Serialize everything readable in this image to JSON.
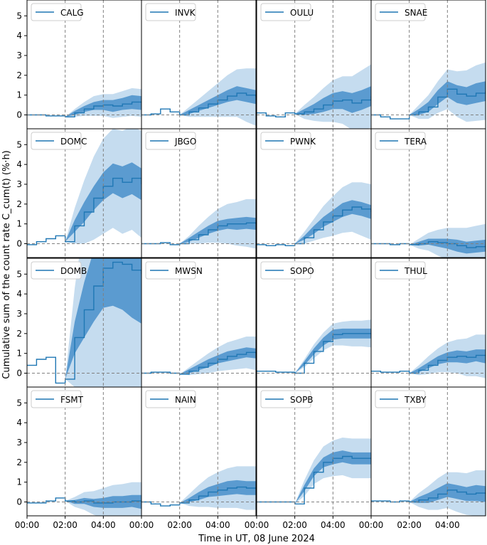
{
  "figure": {
    "ylabel": "Cumulative sum of the count rate C_cum(t) (%·h)",
    "xlabel": "Time in UT, 08 June 2024"
  },
  "chart_data": {
    "type": "line",
    "layout": "4x4 grid, shared axes",
    "grid": false,
    "legend_placement": "upper-left",
    "xlabel": "Time in UT, 08 June 2024",
    "ylabel": "Cumulative sum of the count rate C_cum(t) (%·h)",
    "xlim_hours": [
      0,
      6
    ],
    "xticks": [
      {
        "value": 0,
        "label": "00:00"
      },
      {
        "value": 2,
        "label": "02:00"
      },
      {
        "value": 4,
        "label": "04:00"
      }
    ],
    "ylim": [
      -0.7,
      5.8
    ],
    "yticks": [
      0,
      1,
      2,
      3,
      4,
      5
    ],
    "vertical_reference_lines_hours": [
      2,
      4
    ],
    "horizontal_reference_line": 0,
    "colors": {
      "line": "#1f77b4",
      "band_inner": "#5b9bd0",
      "band_outer": "#c5dcef",
      "reference": "#808080"
    },
    "panels": [
      {
        "name": "CALG",
        "x": [
          0,
          0.5,
          1,
          1.5,
          2,
          2.5,
          3,
          3.5,
          4,
          4.5,
          5,
          5.5,
          6
        ],
        "y": [
          0,
          0,
          -0.05,
          -0.05,
          -0.1,
          0.1,
          0.3,
          0.45,
          0.5,
          0.45,
          0.55,
          0.65,
          0.6
        ],
        "band_inner": [
          0,
          0,
          0,
          0,
          0,
          0.1,
          0.15,
          0.2,
          0.25,
          0.3,
          0.3,
          0.35,
          0.35
        ],
        "band_outer": [
          0,
          0,
          0,
          0,
          0,
          0.2,
          0.35,
          0.5,
          0.55,
          0.6,
          0.65,
          0.7,
          0.7
        ]
      },
      {
        "name": "INVK",
        "x": [
          0,
          0.5,
          1,
          1.5,
          2,
          2.5,
          3,
          3.5,
          4,
          4.5,
          5,
          5.5,
          6
        ],
        "y": [
          0,
          0.05,
          0.3,
          0.15,
          0,
          0.15,
          0.35,
          0.55,
          0.75,
          0.95,
          1.1,
          1.0,
          0.9
        ],
        "band_inner": [
          0,
          0,
          0,
          0,
          0,
          0.1,
          0.15,
          0.2,
          0.25,
          0.3,
          0.35,
          0.35,
          0.35
        ],
        "band_outer": [
          0,
          0,
          0,
          0,
          0,
          0.25,
          0.45,
          0.65,
          0.85,
          1.05,
          1.2,
          1.35,
          1.45
        ]
      },
      {
        "name": "OULU",
        "x": [
          0,
          0.5,
          1,
          1.5,
          2,
          2.5,
          3,
          3.5,
          4,
          4.5,
          5,
          5.5,
          6
        ],
        "y": [
          0.1,
          -0.05,
          -0.1,
          0.1,
          0.05,
          0.15,
          0.3,
          0.5,
          0.7,
          0.75,
          0.6,
          0.75,
          0.95
        ],
        "band_inner": [
          0,
          0,
          0,
          0,
          0,
          0.15,
          0.25,
          0.35,
          0.4,
          0.45,
          0.5,
          0.5,
          0.5
        ],
        "band_outer": [
          0,
          0,
          0,
          0,
          0,
          0.35,
          0.6,
          0.85,
          1.05,
          1.2,
          1.35,
          1.5,
          1.6
        ]
      },
      {
        "name": "SNAE",
        "x": [
          0,
          0.5,
          1,
          1.5,
          2,
          2.5,
          3,
          3.5,
          4,
          4.5,
          5,
          5.5,
          6
        ],
        "y": [
          0,
          -0.1,
          -0.2,
          -0.2,
          0,
          0.15,
          0.4,
          0.9,
          1.3,
          1.05,
          0.95,
          1.1,
          1.2
        ],
        "band_inner": [
          0,
          0,
          0,
          0,
          0,
          0.15,
          0.25,
          0.35,
          0.4,
          0.45,
          0.45,
          0.5,
          0.5
        ],
        "band_outer": [
          0,
          0,
          0,
          0,
          0,
          0.35,
          0.6,
          0.8,
          1.0,
          1.15,
          1.3,
          1.4,
          1.45
        ]
      },
      {
        "name": "DOMC",
        "x": [
          0,
          0.5,
          1,
          1.5,
          2,
          2.5,
          3,
          3.5,
          4,
          4.5,
          5,
          5.5,
          6
        ],
        "y": [
          -0.05,
          0.1,
          0.25,
          0.4,
          0.1,
          0.9,
          1.6,
          2.3,
          2.9,
          3.3,
          3.1,
          3.3,
          3.0
        ],
        "band_inner": [
          0,
          0,
          0,
          0,
          0,
          0.3,
          0.5,
          0.6,
          0.7,
          0.75,
          0.8,
          0.8,
          0.8
        ],
        "band_outer": [
          0,
          0,
          0,
          0,
          0,
          0.9,
          1.6,
          2.1,
          2.4,
          2.5,
          2.6,
          2.6,
          2.7
        ]
      },
      {
        "name": "JBGO",
        "x": [
          0,
          0.5,
          1,
          1.5,
          2,
          2.5,
          3,
          3.5,
          4,
          4.5,
          5,
          5.5,
          6
        ],
        "y": [
          0,
          0,
          0.05,
          -0.05,
          0,
          0.2,
          0.45,
          0.7,
          0.9,
          1.0,
          1.0,
          1.05,
          1.0
        ],
        "band_inner": [
          0,
          0,
          0,
          0,
          0,
          0.1,
          0.15,
          0.2,
          0.25,
          0.25,
          0.3,
          0.3,
          0.3
        ],
        "band_outer": [
          0,
          0,
          0,
          0,
          0,
          0.2,
          0.45,
          0.65,
          0.85,
          1.0,
          1.1,
          1.2,
          1.25
        ]
      },
      {
        "name": "PWNK",
        "x": [
          0,
          0.5,
          1,
          1.5,
          2,
          2.5,
          3,
          3.5,
          4,
          4.5,
          5,
          5.5,
          6
        ],
        "y": [
          -0.05,
          -0.1,
          -0.05,
          -0.1,
          0,
          0.3,
          0.7,
          1.1,
          1.4,
          1.7,
          1.85,
          1.75,
          1.6
        ],
        "band_inner": [
          0,
          0,
          0,
          0,
          0,
          0.1,
          0.2,
          0.25,
          0.3,
          0.35,
          0.35,
          0.35,
          0.35
        ],
        "band_outer": [
          0,
          0,
          0,
          0,
          0,
          0.3,
          0.55,
          0.8,
          1.0,
          1.15,
          1.25,
          1.35,
          1.4
        ]
      },
      {
        "name": "TERA",
        "x": [
          0,
          0.5,
          1,
          1.5,
          2,
          2.5,
          3,
          3.5,
          4,
          4.5,
          5,
          5.5,
          6
        ],
        "y": [
          0,
          0,
          -0.05,
          0,
          -0.05,
          0,
          0.1,
          0.05,
          0,
          -0.1,
          -0.2,
          -0.15,
          -0.1
        ],
        "band_inner": [
          0,
          0,
          0,
          0,
          0,
          0.1,
          0.15,
          0.2,
          0.25,
          0.3,
          0.3,
          0.3,
          0.3
        ],
        "band_outer": [
          0,
          0,
          0,
          0,
          0,
          0.25,
          0.45,
          0.65,
          0.8,
          0.9,
          1.0,
          1.05,
          1.1
        ]
      },
      {
        "name": "DOMB",
        "x": [
          0,
          0.5,
          1,
          1.5,
          2,
          2.5,
          3,
          3.5,
          4,
          4.5,
          5,
          5.5,
          6
        ],
        "y": [
          0.4,
          0.7,
          0.8,
          -0.5,
          -0.3,
          1.8,
          3.2,
          4.4,
          5.3,
          5.6,
          5.5,
          5.2,
          5.0
        ],
        "band_inner": [
          0,
          0,
          0,
          0,
          0,
          0.8,
          1.4,
          1.8,
          2.0,
          2.2,
          2.3,
          2.4,
          2.5
        ],
        "band_outer": [
          0,
          0,
          0,
          0,
          0,
          2.5,
          4.5,
          6.0,
          7.0,
          7.5,
          8.0,
          8.0,
          8.0
        ]
      },
      {
        "name": "MWSN",
        "x": [
          0,
          0.5,
          1,
          1.5,
          2,
          2.5,
          3,
          3.5,
          4,
          4.5,
          5,
          5.5,
          6
        ],
        "y": [
          0,
          0.05,
          0.05,
          0,
          -0.05,
          0.1,
          0.3,
          0.5,
          0.7,
          0.85,
          0.95,
          1.05,
          1.0
        ],
        "band_inner": [
          0,
          0,
          0,
          0,
          0,
          0.1,
          0.15,
          0.2,
          0.2,
          0.25,
          0.25,
          0.25,
          0.25
        ],
        "band_outer": [
          0,
          0,
          0,
          0,
          0,
          0.2,
          0.35,
          0.5,
          0.6,
          0.7,
          0.75,
          0.8,
          0.85
        ]
      },
      {
        "name": "SOPO",
        "x": [
          0,
          0.5,
          1,
          1.5,
          2,
          2.5,
          3,
          3.5,
          4,
          4.5,
          5,
          5.5,
          6
        ],
        "y": [
          0.1,
          0.1,
          0.05,
          0.05,
          0,
          0.5,
          1.1,
          1.6,
          1.95,
          2.0,
          2.0,
          2.0,
          2.0
        ],
        "band_inner": [
          0,
          0,
          0,
          0,
          0,
          0.1,
          0.15,
          0.2,
          0.25,
          0.25,
          0.25,
          0.25,
          0.25
        ],
        "band_outer": [
          0,
          0,
          0,
          0,
          0,
          0.2,
          0.35,
          0.45,
          0.55,
          0.6,
          0.65,
          0.65,
          0.7
        ]
      },
      {
        "name": "THUL",
        "x": [
          0,
          0.5,
          1,
          1.5,
          2,
          2.5,
          3,
          3.5,
          4,
          4.5,
          5,
          5.5,
          6
        ],
        "y": [
          0.1,
          0.05,
          0.05,
          0.1,
          0,
          0.15,
          0.4,
          0.65,
          0.8,
          0.85,
          0.8,
          0.9,
          0.85
        ],
        "band_inner": [
          0,
          0,
          0,
          0,
          0,
          0.1,
          0.15,
          0.2,
          0.25,
          0.3,
          0.3,
          0.3,
          0.35
        ],
        "band_outer": [
          0,
          0,
          0,
          0,
          0,
          0.25,
          0.45,
          0.6,
          0.75,
          0.85,
          0.95,
          1.05,
          1.1
        ]
      },
      {
        "name": "FSMT",
        "x": [
          0,
          0.5,
          1,
          1.5,
          2,
          2.5,
          3,
          3.5,
          4,
          4.5,
          5,
          5.5,
          6
        ],
        "y": [
          -0.05,
          -0.05,
          0.05,
          0.2,
          0.05,
          0,
          0.05,
          -0.05,
          -0.05,
          0,
          0,
          0.05,
          0
        ],
        "band_inner": [
          0,
          0,
          0,
          0,
          0,
          0.1,
          0.15,
          0.2,
          0.25,
          0.3,
          0.3,
          0.3,
          0.35
        ],
        "band_outer": [
          0,
          0,
          0,
          0,
          0,
          0.25,
          0.45,
          0.6,
          0.75,
          0.85,
          0.9,
          0.95,
          1.0
        ]
      },
      {
        "name": "NAIN",
        "x": [
          0,
          0.5,
          1,
          1.5,
          2,
          2.5,
          3,
          3.5,
          4,
          4.5,
          5,
          5.5,
          6
        ],
        "y": [
          0,
          -0.1,
          -0.2,
          -0.15,
          -0.05,
          0.1,
          0.3,
          0.5,
          0.6,
          0.7,
          0.75,
          0.7,
          0.7
        ],
        "band_inner": [
          0,
          0,
          0,
          0,
          0,
          0.1,
          0.2,
          0.25,
          0.3,
          0.35,
          0.35,
          0.35,
          0.35
        ],
        "band_outer": [
          0,
          0,
          0,
          0,
          0,
          0.3,
          0.55,
          0.75,
          0.9,
          1.0,
          1.05,
          1.1,
          1.1
        ]
      },
      {
        "name": "SOPB",
        "x": [
          0,
          0.5,
          1,
          1.5,
          2,
          2.5,
          3,
          3.5,
          4,
          4.5,
          5,
          5.5,
          6
        ],
        "y": [
          0,
          0,
          0,
          0,
          -0.1,
          0.7,
          1.5,
          2.0,
          2.2,
          2.3,
          2.2,
          2.2,
          2.2
        ],
        "band_inner": [
          0,
          0,
          0,
          0,
          0,
          0.15,
          0.2,
          0.25,
          0.3,
          0.3,
          0.3,
          0.3,
          0.3
        ],
        "band_outer": [
          0,
          0,
          0,
          0,
          0,
          0.4,
          0.6,
          0.8,
          0.9,
          0.95,
          1.0,
          1.0,
          1.0
        ]
      },
      {
        "name": "TXBY",
        "x": [
          0,
          0.5,
          1,
          1.5,
          2,
          2.5,
          3,
          3.5,
          4,
          4.5,
          5,
          5.5,
          6
        ],
        "y": [
          0.05,
          0.05,
          0,
          0.05,
          0,
          0.1,
          0.2,
          0.4,
          0.6,
          0.5,
          0.4,
          0.45,
          0.4
        ],
        "band_inner": [
          0,
          0,
          0,
          0,
          0,
          0.15,
          0.25,
          0.3,
          0.35,
          0.35,
          0.35,
          0.4,
          0.4
        ],
        "band_outer": [
          0,
          0,
          0,
          0,
          0,
          0.35,
          0.6,
          0.8,
          0.9,
          1.0,
          1.05,
          1.15,
          1.2
        ]
      }
    ]
  }
}
